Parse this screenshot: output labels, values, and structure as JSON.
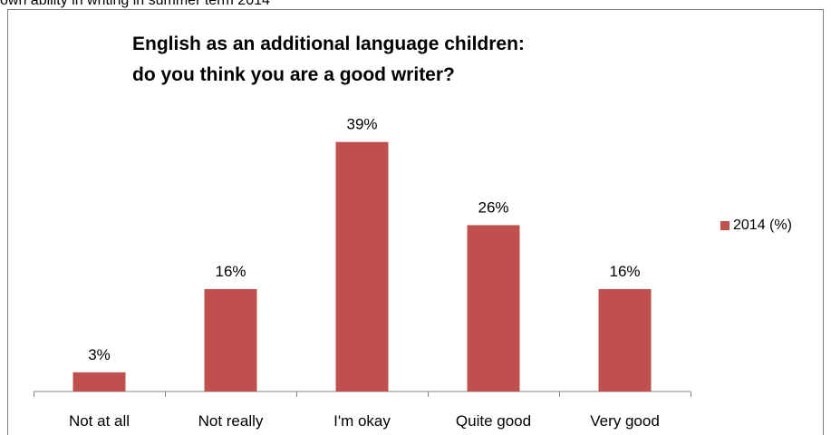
{
  "caption": "own ability in writing in summer term 2014",
  "chart_data": {
    "type": "bar",
    "title": [
      "English as an additional language children:",
      "do you think you are a good writer?"
    ],
    "categories": [
      "Not at all",
      "Not really",
      "I'm okay",
      "Quite good",
      "Very good"
    ],
    "series": [
      {
        "name": "2014 (%)",
        "values": [
          3,
          16,
          39,
          26,
          16
        ],
        "color": "#c0504d"
      }
    ],
    "data_labels": [
      "3%",
      "16%",
      "39%",
      "26%",
      "16%"
    ],
    "xlabel": "",
    "ylabel": "",
    "ylim": [
      0,
      45
    ],
    "grid": false,
    "y_axis_shown": false,
    "legend_position": "right"
  }
}
